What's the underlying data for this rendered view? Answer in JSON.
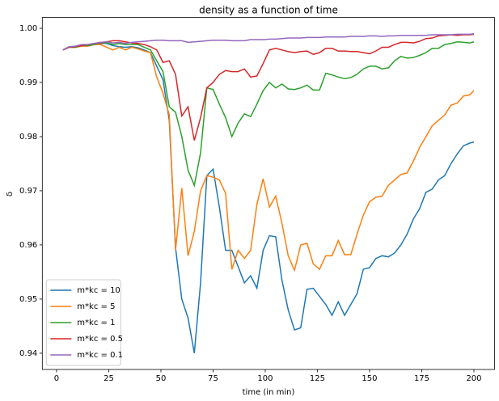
{
  "chart_data": {
    "type": "line",
    "title": "density as a function of time",
    "x_label": "time (in min)",
    "y_label": "δ",
    "x": [
      3,
      6,
      9,
      12,
      15,
      18,
      21,
      24,
      27,
      30,
      33,
      36,
      39,
      42,
      45,
      48,
      51,
      54,
      57,
      60,
      63,
      66,
      69,
      72,
      75,
      78,
      81,
      84,
      87,
      90,
      93,
      96,
      99,
      102,
      105,
      108,
      111,
      114,
      117,
      120,
      123,
      126,
      129,
      132,
      135,
      138,
      141,
      144,
      147,
      150,
      153,
      156,
      159,
      162,
      165,
      168,
      171,
      174,
      177,
      180,
      183,
      186,
      189,
      192,
      195,
      198,
      200
    ],
    "series": [
      {
        "name": "m*kc = 10",
        "color": "#1f77b4",
        "values": [
          0.996,
          0.9965,
          0.9966,
          0.9968,
          0.9968,
          0.997,
          0.9972,
          0.9972,
          0.9968,
          0.9966,
          0.9965,
          0.9966,
          0.9964,
          0.996,
          0.9955,
          0.993,
          0.9905,
          0.983,
          0.9595,
          0.95,
          0.9465,
          0.94,
          0.953,
          0.9728,
          0.974,
          0.967,
          0.959,
          0.959,
          0.956,
          0.953,
          0.9543,
          0.952,
          0.959,
          0.9617,
          0.9615,
          0.9535,
          0.948,
          0.9443,
          0.9447,
          0.9518,
          0.952,
          0.9505,
          0.949,
          0.947,
          0.9495,
          0.947,
          0.949,
          0.951,
          0.9555,
          0.9558,
          0.9575,
          0.958,
          0.9578,
          0.9585,
          0.96,
          0.962,
          0.9648,
          0.9667,
          0.9697,
          0.9703,
          0.972,
          0.9728,
          0.975,
          0.9768,
          0.9783,
          0.9788,
          0.979
        ]
      },
      {
        "name": "m*kc = 5",
        "color": "#ff7f0e",
        "values": [
          0.996,
          0.9965,
          0.9965,
          0.9967,
          0.9967,
          0.997,
          0.997,
          0.9965,
          0.996,
          0.9965,
          0.996,
          0.9965,
          0.9962,
          0.9958,
          0.9955,
          0.991,
          0.988,
          0.984,
          0.959,
          0.9705,
          0.958,
          0.9625,
          0.97,
          0.9728,
          0.9725,
          0.972,
          0.9695,
          0.9555,
          0.959,
          0.9575,
          0.959,
          0.9675,
          0.9722,
          0.967,
          0.969,
          0.964,
          0.958,
          0.9553,
          0.96,
          0.9603,
          0.9565,
          0.9555,
          0.958,
          0.958,
          0.9608,
          0.9582,
          0.9582,
          0.962,
          0.9655,
          0.968,
          0.9688,
          0.969,
          0.971,
          0.972,
          0.973,
          0.9733,
          0.9755,
          0.978,
          0.98,
          0.982,
          0.983,
          0.984,
          0.9858,
          0.9862,
          0.9875,
          0.9877,
          0.9885
        ]
      },
      {
        "name": "m*kc = 1",
        "color": "#2ca02c",
        "values": [
          0.996,
          0.9965,
          0.9965,
          0.9968,
          0.9968,
          0.997,
          0.9973,
          0.9973,
          0.997,
          0.9972,
          0.997,
          0.997,
          0.997,
          0.9965,
          0.996,
          0.994,
          0.992,
          0.9855,
          0.9845,
          0.98,
          0.9738,
          0.971,
          0.977,
          0.989,
          0.9887,
          0.986,
          0.9835,
          0.98,
          0.9825,
          0.9842,
          0.9837,
          0.986,
          0.9885,
          0.99,
          0.989,
          0.9897,
          0.9888,
          0.9887,
          0.989,
          0.9895,
          0.9886,
          0.9886,
          0.9917,
          0.9914,
          0.991,
          0.9907,
          0.9909,
          0.9915,
          0.9925,
          0.993,
          0.993,
          0.9925,
          0.9927,
          0.994,
          0.9948,
          0.9945,
          0.9946,
          0.995,
          0.9955,
          0.9963,
          0.9963,
          0.997,
          0.9972,
          0.9975,
          0.9974,
          0.9973,
          0.9975
        ]
      },
      {
        "name": "m*kc = 0.5",
        "color": "#d62728",
        "values": [
          0.996,
          0.9965,
          0.9966,
          0.9968,
          0.997,
          0.9972,
          0.9973,
          0.9975,
          0.9977,
          0.9977,
          0.9975,
          0.9973,
          0.9972,
          0.997,
          0.9966,
          0.996,
          0.9937,
          0.994,
          0.9915,
          0.9838,
          0.9855,
          0.9793,
          0.9835,
          0.989,
          0.99,
          0.9915,
          0.9922,
          0.992,
          0.992,
          0.9925,
          0.991,
          0.9912,
          0.9935,
          0.996,
          0.9963,
          0.996,
          0.9957,
          0.9955,
          0.9957,
          0.9958,
          0.9952,
          0.9955,
          0.9963,
          0.9963,
          0.9958,
          0.9958,
          0.9957,
          0.9957,
          0.9955,
          0.9953,
          0.9958,
          0.9965,
          0.9965,
          0.997,
          0.9974,
          0.9974,
          0.9973,
          0.9976,
          0.9981,
          0.9982,
          0.9986,
          0.9987,
          0.9988,
          0.9987,
          0.9988,
          0.9988,
          0.9989
        ]
      },
      {
        "name": "m*kc = 0.1",
        "color": "#9467bd",
        "values": [
          0.996,
          0.9966,
          0.9967,
          0.997,
          0.997,
          0.9972,
          0.9974,
          0.9975,
          0.9973,
          0.9974,
          0.9972,
          0.9974,
          0.9975,
          0.9976,
          0.9977,
          0.9978,
          0.9978,
          0.9977,
          0.9977,
          0.9977,
          0.9974,
          0.9975,
          0.9976,
          0.9977,
          0.9978,
          0.9978,
          0.9978,
          0.9977,
          0.9977,
          0.9977,
          0.9979,
          0.9979,
          0.9979,
          0.998,
          0.998,
          0.9981,
          0.9982,
          0.9982,
          0.9982,
          0.9983,
          0.9983,
          0.9983,
          0.9984,
          0.9984,
          0.9984,
          0.9984,
          0.9985,
          0.9985,
          0.9985,
          0.9986,
          0.9986,
          0.9985,
          0.9986,
          0.9986,
          0.9987,
          0.9987,
          0.9987,
          0.9987,
          0.9987,
          0.9988,
          0.9988,
          0.9988,
          0.9988,
          0.9989,
          0.9989,
          0.9989,
          0.999
        ]
      }
    ],
    "xlim": [
      -6.85,
      209.85
    ],
    "ylim": [
      0.937,
      1.002
    ],
    "xticks": [
      0,
      25,
      50,
      75,
      100,
      125,
      150,
      175,
      200
    ],
    "yticks": [
      0.94,
      0.95,
      0.96,
      0.97,
      0.98,
      0.99,
      {
        "value": 1,
        "label": "1.00"
      }
    ],
    "grid": false,
    "legend": "lower left"
  }
}
